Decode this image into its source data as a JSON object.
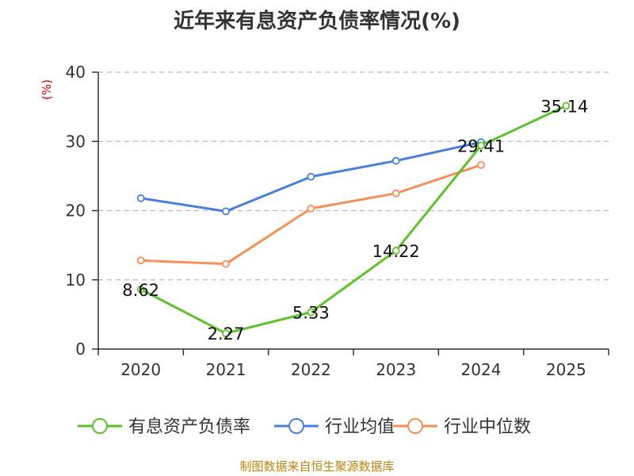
{
  "chart_data": {
    "type": "line",
    "title": "近年来有息资产负债率情况(%)",
    "ylabel": "(%)",
    "xlabel": "",
    "categories": [
      "2020",
      "2021",
      "2022",
      "2023",
      "2024",
      "2025"
    ],
    "ylim": [
      0,
      40
    ],
    "yticks": [
      0,
      10,
      20,
      30,
      40
    ],
    "grid": true,
    "legend_position": "bottom",
    "series": [
      {
        "name": "有息资产负债率",
        "color": "#5cc12a",
        "values": [
          8.62,
          2.27,
          5.33,
          14.22,
          29.41,
          35.14
        ],
        "labels": [
          "8.62",
          "2.27",
          "5.33",
          "14.22",
          "29.41",
          "35.14"
        ]
      },
      {
        "name": "行业均值",
        "color": "#4a7fd8",
        "values": [
          21.8,
          19.9,
          24.9,
          27.2,
          29.9,
          null
        ]
      },
      {
        "name": "行业中位数",
        "color": "#f39158",
        "values": [
          12.8,
          12.3,
          20.3,
          22.5,
          26.6,
          null
        ]
      }
    ]
  },
  "footer": {
    "source": "制图数据来自恒生聚源数据库"
  }
}
